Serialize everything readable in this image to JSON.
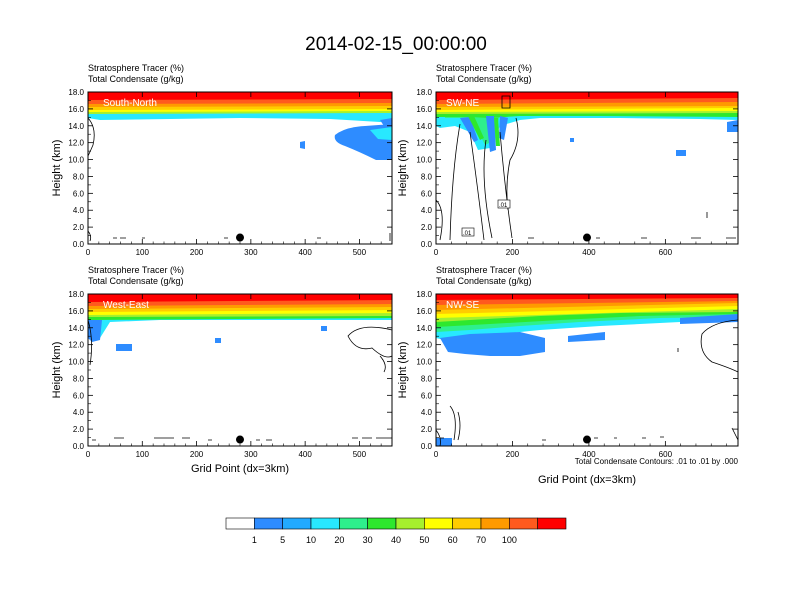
{
  "figure": {
    "title": "2014-02-15_00:00:00",
    "footnote": "Total Condensate Contours: .01 to .01 by .000"
  },
  "colorbar": {
    "colors": [
      "#ffffff",
      "#2e8cff",
      "#22aaff",
      "#28e8ff",
      "#2ef08c",
      "#2ee82e",
      "#a6f02e",
      "#ffff00",
      "#ffcc00",
      "#ff9a00",
      "#ff5a1e",
      "#ff0000"
    ],
    "labels": [
      "1",
      "5",
      "10",
      "20",
      "30",
      "40",
      "50",
      "60",
      "70",
      "100"
    ]
  },
  "chart_data": [
    {
      "type": "heatmap",
      "panel_label": "South-North",
      "title_line1": "Stratosphere Tracer   (%)",
      "title_line2": "Total Condensate   (g/kg)",
      "ylabel": "Height (km)",
      "xlabel": "",
      "xlim": [
        0,
        560
      ],
      "ylim": [
        0,
        18
      ],
      "xticks": [
        "0",
        "100",
        "200",
        "300",
        "400",
        "500"
      ],
      "yticks": [
        "0.0",
        "2.0",
        "4.0",
        "6.0",
        "8.0",
        "10.0",
        "12.0",
        "14.0",
        "16.0",
        "18.0"
      ],
      "marker_x": 280
    },
    {
      "type": "heatmap",
      "panel_label": "SW-NE",
      "title_line1": "Stratosphere Tracer   (%)",
      "title_line2": "Total Condensate   (g/kg)",
      "ylabel": "Height (km)",
      "xlabel": "",
      "xlim": [
        0,
        790
      ],
      "ylim": [
        0,
        18
      ],
      "xticks": [
        "0",
        "200",
        "400",
        "600"
      ],
      "yticks": [
        "0.0",
        "2.0",
        "4.0",
        "6.0",
        "8.0",
        "10.0",
        "12.0",
        "14.0",
        "16.0",
        "18.0"
      ],
      "marker_x": 395,
      "contour_labels": [
        ".01",
        ".01"
      ]
    },
    {
      "type": "heatmap",
      "panel_label": "West-East",
      "title_line1": "Stratosphere Tracer   (%)",
      "title_line2": "Total Condensate   (g/kg)",
      "ylabel": "Height (km)",
      "xlabel": "Grid Point (dx=3km)",
      "xlim": [
        0,
        560
      ],
      "ylim": [
        0,
        18
      ],
      "xticks": [
        "0",
        "100",
        "200",
        "300",
        "400",
        "500"
      ],
      "yticks": [
        "0.0",
        "2.0",
        "4.0",
        "6.0",
        "8.0",
        "10.0",
        "12.0",
        "14.0",
        "16.0",
        "18.0"
      ],
      "marker_x": 280
    },
    {
      "type": "heatmap",
      "panel_label": "NW-SE",
      "title_line1": "Stratosphere Tracer   (%)",
      "title_line2": "Total Condensate   (g/kg)",
      "ylabel": "Height (km)",
      "xlabel": "Grid Point (dx=3km)",
      "xlim": [
        0,
        790
      ],
      "ylim": [
        0,
        18
      ],
      "xticks": [
        "0",
        "200",
        "400",
        "600"
      ],
      "yticks": [
        "0.0",
        "2.0",
        "4.0",
        "6.0",
        "8.0",
        "10.0",
        "12.0",
        "14.0",
        "16.0",
        "18.0"
      ],
      "marker_x": 395
    }
  ]
}
